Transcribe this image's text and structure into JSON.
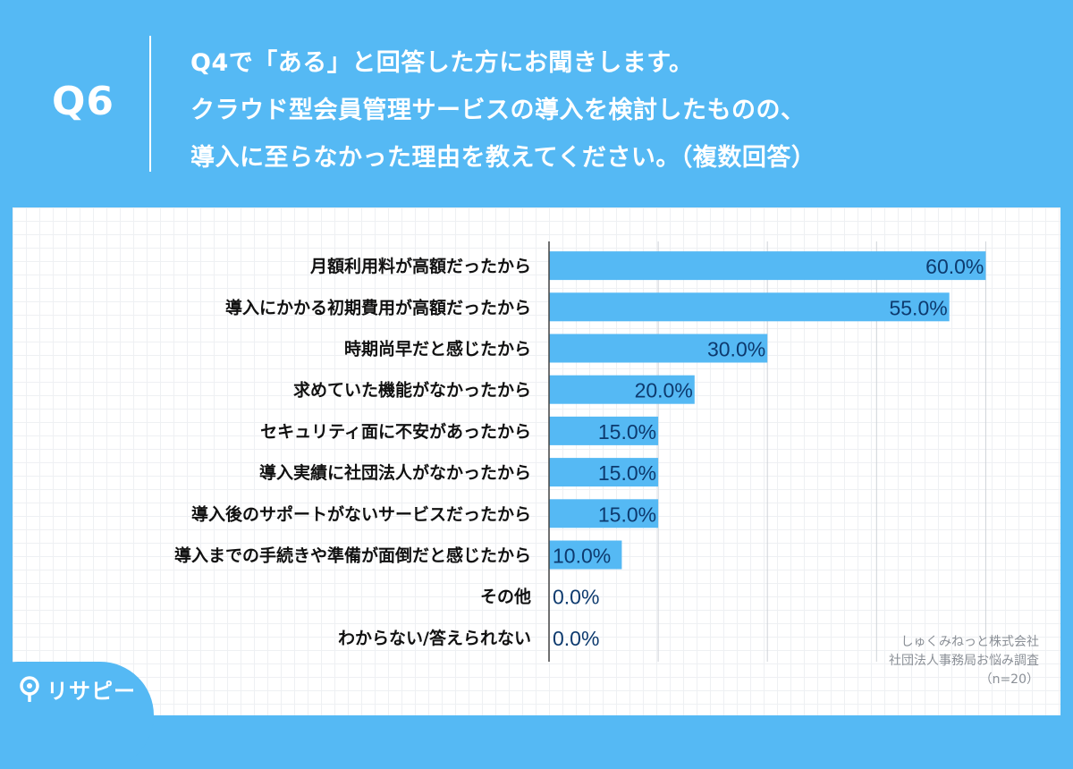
{
  "header": {
    "qnum": "Q6",
    "lines": [
      "Q4で「ある」と回答した方にお聞きします。",
      "クラウド型会員管理サービスの導入を検討したものの、",
      "導入に至らなかった理由を教えてください。（複数回答）"
    ]
  },
  "source": {
    "lines": [
      "しゅくみねっと株式会社",
      "社団法人事務局お悩み調査",
      "（n=20）"
    ]
  },
  "logo": {
    "text": "リサピー",
    "icon": "map-pin-icon"
  },
  "colors": {
    "accent": "#55b9f4",
    "bar": "#55b9f4",
    "value_label": "#0d3a6e"
  },
  "chart_data": {
    "type": "bar",
    "orientation": "horizontal",
    "categories": [
      "月額利用料が高額だったから",
      "導入にかかる初期費用が高額だったから",
      "時期尚早だと感じたから",
      "求めていた機能がなかったから",
      "セキュリティ面に不安があったから",
      "導入実績に社団法人がなかったから",
      "導入後のサポートがないサービスだったから",
      "導入までの手続きや準備が面倒だと感じたから",
      "その他",
      "わからない/答えられない"
    ],
    "values": [
      60.0,
      55.0,
      30.0,
      20.0,
      15.0,
      15.0,
      15.0,
      10.0,
      0.0,
      0.0
    ],
    "value_labels": [
      "60.0%",
      "55.0%",
      "30.0%",
      "20.0%",
      "15.0%",
      "15.0%",
      "15.0%",
      "10.0%",
      "0.0%",
      "0.0%"
    ],
    "xlim": [
      0,
      70
    ],
    "grid_step": 15,
    "grid": true,
    "legend": false
  }
}
